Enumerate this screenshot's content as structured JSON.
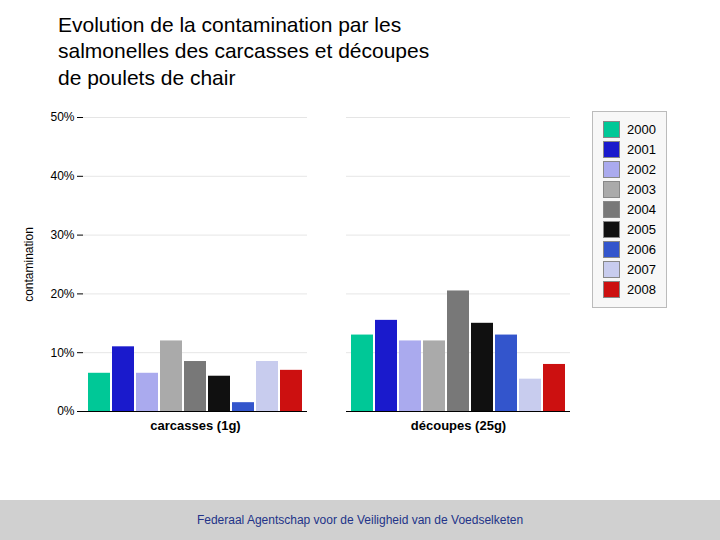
{
  "chart_data": {
    "type": "bar",
    "title": "Evolution de la contamination par les\nsalmonelles des carcasses et découpes\nde poulets de chair",
    "ylabel": "contamination",
    "categories": [
      "carcasses (1g)",
      "découpes (25g)"
    ],
    "series": [
      {
        "name": "2000",
        "color": "#00C897",
        "values": [
          6.5,
          13
        ]
      },
      {
        "name": "2001",
        "color": "#1A1ACC",
        "values": [
          11,
          15.5
        ]
      },
      {
        "name": "2002",
        "color": "#AAAAEE",
        "values": [
          6.5,
          12
        ]
      },
      {
        "name": "2003",
        "color": "#AAAAAA",
        "values": [
          12,
          12
        ]
      },
      {
        "name": "2004",
        "color": "#787878",
        "values": [
          8.5,
          20.5
        ]
      },
      {
        "name": "2005",
        "color": "#101010",
        "values": [
          6,
          15
        ]
      },
      {
        "name": "2006",
        "color": "#3355CC",
        "values": [
          1.5,
          13
        ]
      },
      {
        "name": "2007",
        "color": "#C8CCEE",
        "values": [
          8.5,
          5.5
        ]
      },
      {
        "name": "2008",
        "color": "#CC1010",
        "values": [
          7,
          8
        ]
      }
    ],
    "ylim": [
      0,
      50
    ],
    "yticks": [
      {
        "value": 0,
        "label": "0%"
      },
      {
        "value": 10,
        "label": "10%"
      },
      {
        "value": 20,
        "label": "20%"
      },
      {
        "value": 30,
        "label": "30%"
      },
      {
        "value": 40,
        "label": "40%"
      },
      {
        "value": 50,
        "label": "50%"
      }
    ],
    "grid": true,
    "legend": "right",
    "annotations": [
      "Federaal Agentschap voor de Veiligheid van de Voedselketen"
    ]
  }
}
